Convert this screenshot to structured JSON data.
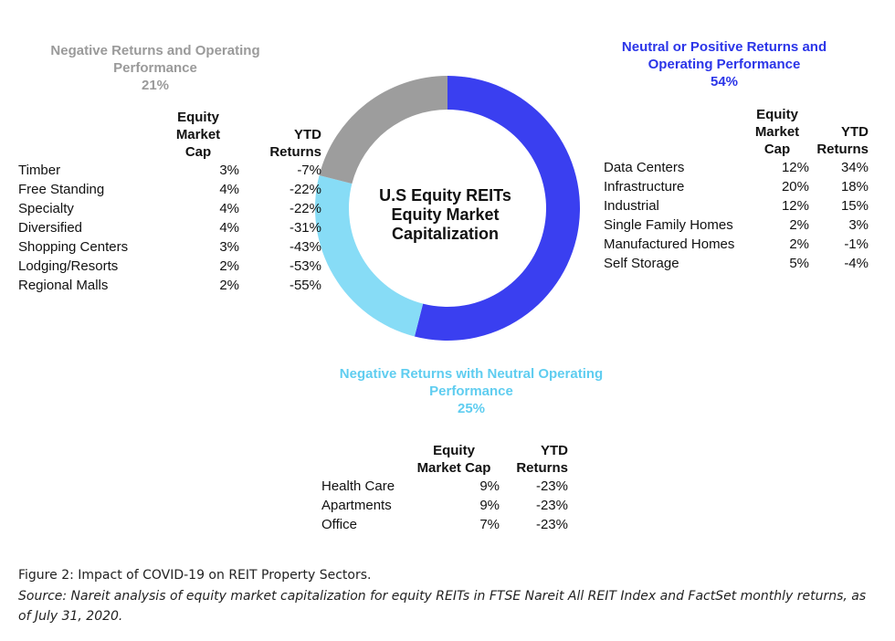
{
  "chart_data": {
    "type": "pie",
    "variant": "donut",
    "title": "U.S Equity REITs Equity Market Capitalization",
    "title_lines": [
      "U.S Equity REITs",
      "Equity Market",
      "Capitalization"
    ],
    "slices": [
      {
        "label": "Neutral or Positive Returns and Operating Performance",
        "label_lines": [
          "Neutral or Positive Returns and",
          "Operating Performance"
        ],
        "pct_label": "54%",
        "value": 54,
        "color": "#3a3ff0",
        "title_color": "#2b35e8",
        "columns": [
          "Equity Market Cap",
          "YTD Returns"
        ],
        "header_lines": [
          [
            "Equity",
            "Market",
            "Cap"
          ],
          [
            "YTD",
            "Returns"
          ]
        ],
        "rows": [
          {
            "sector": "Data Centers",
            "cap": "12%",
            "ytd": "34%"
          },
          {
            "sector": "Infrastructure",
            "cap": "20%",
            "ytd": "18%"
          },
          {
            "sector": "Industrial",
            "cap": "12%",
            "ytd": "15%"
          },
          {
            "sector": "Single Family Homes",
            "cap": "2%",
            "ytd": "3%"
          },
          {
            "sector": "Manufactured Homes",
            "cap": "2%",
            "ytd": "-1%"
          },
          {
            "sector": "Self Storage",
            "cap": "5%",
            "ytd": "-4%"
          }
        ]
      },
      {
        "label": "Negative Returns with Neutral Operating Performance",
        "label_lines": [
          "Negative Returns with Neutral Operating",
          "Performance"
        ],
        "pct_label": "25%",
        "value": 25,
        "color": "#87dcf6",
        "title_color": "#5fcdf0",
        "columns": [
          "Equity Market Cap",
          "YTD Returns"
        ],
        "header_lines": [
          [
            "Equity",
            "Market Cap"
          ],
          [
            "YTD",
            "Returns"
          ]
        ],
        "rows": [
          {
            "sector": "Health Care",
            "cap": "9%",
            "ytd": "-23%"
          },
          {
            "sector": "Apartments",
            "cap": "9%",
            "ytd": "-23%"
          },
          {
            "sector": "Office",
            "cap": "7%",
            "ytd": "-23%"
          }
        ]
      },
      {
        "label": "Negative Returns and Operating Performance",
        "label_lines": [
          "Negative Returns and Operating",
          "Performance"
        ],
        "pct_label": "21%",
        "value": 21,
        "color": "#9d9d9d",
        "title_color": "#9a9a9a",
        "columns": [
          "Equity Market Cap",
          "YTD Returns"
        ],
        "header_lines": [
          [
            "Equity",
            "Market",
            "Cap"
          ],
          [
            "YTD",
            "Returns"
          ]
        ],
        "rows": [
          {
            "sector": "Timber",
            "cap": "3%",
            "ytd": "-7%"
          },
          {
            "sector": "Free Standing",
            "cap": "4%",
            "ytd": "-22%"
          },
          {
            "sector": "Specialty",
            "cap": "4%",
            "ytd": "-22%"
          },
          {
            "sector": "Diversified",
            "cap": "4%",
            "ytd": "-31%"
          },
          {
            "sector": "Shopping Centers",
            "cap": "3%",
            "ytd": "-43%"
          },
          {
            "sector": "Lodging/Resorts",
            "cap": "2%",
            "ytd": "-53%"
          },
          {
            "sector": "Regional Malls",
            "cap": "2%",
            "ytd": "-55%"
          }
        ]
      }
    ]
  },
  "caption": {
    "figure": "Figure 2: Impact of COVID-19 on REIT Property Sectors.",
    "source": "Source: Nareit analysis of equity market capitalization for equity REITs in FTSE Nareit All REIT Index and FactSet monthly returns, as of July 31, 2020."
  }
}
